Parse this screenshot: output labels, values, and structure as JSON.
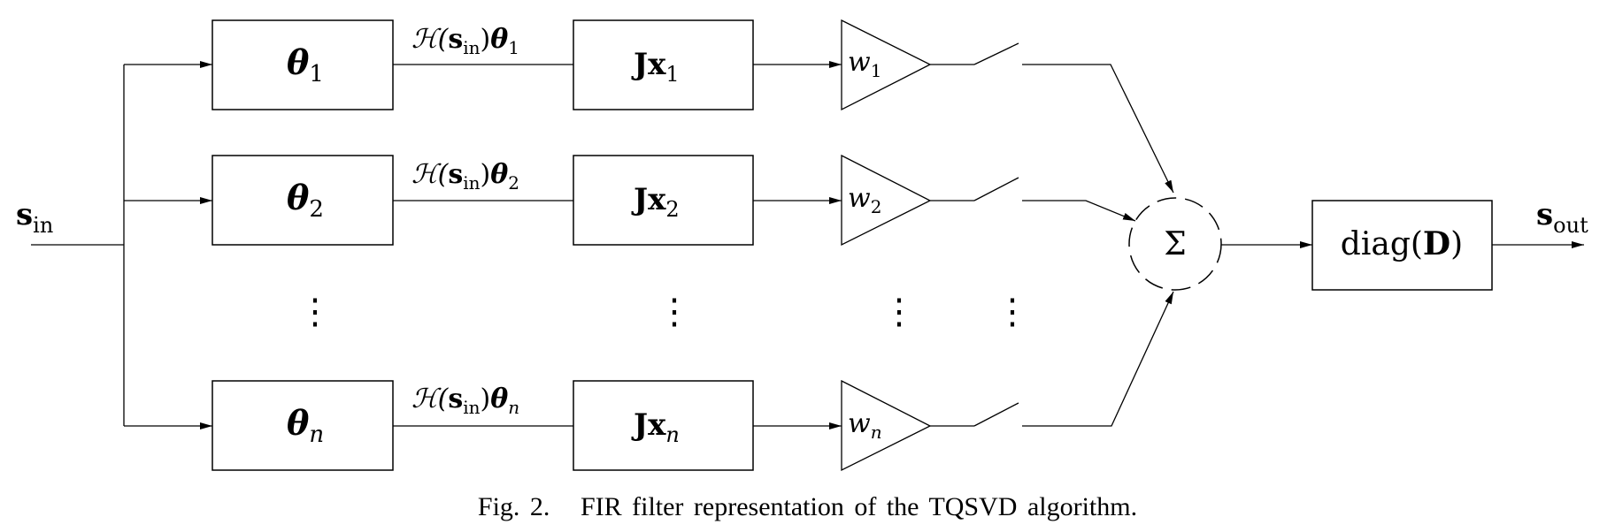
{
  "input": {
    "base": "s",
    "sub": "in"
  },
  "output": {
    "base": "s",
    "sub": "out"
  },
  "branches": [
    {
      "theta_base": "θ",
      "theta_sub": "1",
      "wire_pre": "ℋ(",
      "wire_s": "s",
      "wire_s_sub": "in",
      "wire_close": ")",
      "wire_theta": "θ",
      "wire_theta_sub": "1",
      "jx_J": "J",
      "jx_x": "x",
      "jx_sub": "1",
      "w_base": "w",
      "w_sub": "1"
    },
    {
      "theta_base": "θ",
      "theta_sub": "2",
      "wire_pre": "ℋ(",
      "wire_s": "s",
      "wire_s_sub": "in",
      "wire_close": ")",
      "wire_theta": "θ",
      "wire_theta_sub": "2",
      "jx_J": "J",
      "jx_x": "x",
      "jx_sub": "2",
      "w_base": "w",
      "w_sub": "2"
    },
    {
      "theta_base": "θ",
      "theta_sub": "n",
      "wire_pre": "ℋ(",
      "wire_s": "s",
      "wire_s_sub": "in",
      "wire_close": ")",
      "wire_theta": "θ",
      "wire_theta_sub": "n",
      "jx_J": "J",
      "jx_x": "x",
      "jx_sub": "n",
      "w_base": "w",
      "w_sub": "n"
    }
  ],
  "ellipsis": "⋮",
  "summation": "Σ",
  "diag_block": {
    "pre": "diag(",
    "bold": "D",
    "post": ")"
  },
  "caption": {
    "label": "Fig. 2.",
    "text": "FIR filter representation of the TQSVD algorithm."
  }
}
